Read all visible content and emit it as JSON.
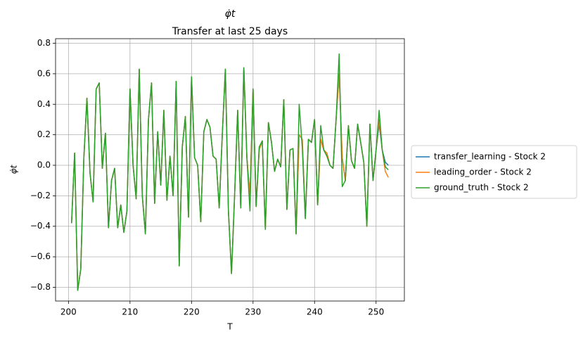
{
  "chart_data": {
    "type": "line",
    "title": "φ̇t",
    "subtitle": "Transfer at last 25 days",
    "xlabel": "T",
    "ylabel": "φ̇t",
    "x": [
      200.5,
      201,
      201.5,
      202,
      202.5,
      203,
      203.5,
      204,
      204.5,
      205,
      205.5,
      206,
      206.5,
      207,
      207.5,
      208,
      208.5,
      209,
      209.5,
      210,
      210.5,
      211,
      211.5,
      212,
      212.5,
      213,
      213.5,
      214,
      214.5,
      215,
      215.5,
      216,
      216.5,
      217,
      217.5,
      218,
      218.5,
      219,
      219.5,
      220,
      220.5,
      221,
      221.5,
      222,
      222.5,
      223,
      223.5,
      224,
      224.5,
      225,
      225.5,
      226,
      226.5,
      227,
      227.5,
      228,
      228.5,
      229,
      229.5,
      230,
      230.5,
      231,
      231.5,
      232,
      232.5,
      233,
      233.5,
      234,
      234.5,
      235,
      235.5,
      236,
      236.5,
      237,
      237.5,
      238,
      238.5,
      239,
      239.5,
      240,
      240.5,
      241,
      241.5,
      242,
      242.5,
      243,
      243.5,
      244,
      244.5,
      245,
      245.5,
      246,
      246.5,
      247,
      247.5,
      248,
      248.5,
      249,
      249.5,
      250,
      250.5,
      251,
      251.5,
      252
    ],
    "series": [
      {
        "name": "transfer_learning - Stock 2",
        "color": "#1f77b4",
        "values": [
          -0.38,
          0.08,
          -0.82,
          -0.68,
          0.05,
          0.44,
          -0.05,
          -0.24,
          0.5,
          0.54,
          -0.02,
          0.21,
          -0.41,
          -0.1,
          -0.02,
          -0.41,
          -0.26,
          -0.44,
          -0.3,
          0.5,
          0.0,
          -0.22,
          0.63,
          -0.2,
          -0.45,
          0.3,
          0.54,
          -0.25,
          0.22,
          -0.13,
          0.36,
          -0.23,
          0.06,
          -0.2,
          0.55,
          -0.66,
          0.12,
          0.32,
          -0.34,
          0.58,
          0.05,
          0.0,
          -0.37,
          0.22,
          0.3,
          0.25,
          0.06,
          0.04,
          -0.28,
          0.2,
          0.63,
          -0.3,
          -0.71,
          -0.2,
          0.36,
          -0.28,
          0.64,
          0.05,
          -0.2,
          0.5,
          -0.27,
          0.1,
          0.16,
          -0.42,
          0.28,
          0.15,
          -0.04,
          0.04,
          -0.01,
          0.43,
          -0.29,
          0.1,
          0.11,
          -0.45,
          0.2,
          0.17,
          -0.35,
          0.17,
          0.15,
          0.3,
          -0.26,
          0.17,
          0.1,
          0.08,
          0.0,
          -0.02,
          0.3,
          0.6,
          0.05,
          -0.1,
          0.26,
          0.03,
          -0.02,
          0.27,
          0.15,
          0.02,
          -0.4,
          0.27,
          -0.1,
          0.1,
          0.27,
          0.1,
          0.02,
          0.0
        ]
      },
      {
        "name": "leading_order - Stock 2",
        "color": "#ff7f0e",
        "values": [
          -0.38,
          0.08,
          -0.82,
          -0.68,
          0.05,
          0.44,
          -0.05,
          -0.24,
          0.5,
          0.54,
          -0.02,
          0.21,
          -0.41,
          -0.1,
          -0.02,
          -0.41,
          -0.26,
          -0.44,
          -0.3,
          0.5,
          0.0,
          -0.22,
          0.63,
          -0.2,
          -0.45,
          0.3,
          0.54,
          -0.25,
          0.22,
          -0.13,
          0.36,
          -0.23,
          0.06,
          -0.2,
          0.55,
          -0.66,
          0.12,
          0.32,
          -0.34,
          0.58,
          0.05,
          0.0,
          -0.37,
          0.22,
          0.3,
          0.25,
          0.06,
          0.04,
          -0.28,
          0.2,
          0.63,
          -0.3,
          -0.71,
          -0.2,
          0.36,
          -0.28,
          0.64,
          0.05,
          -0.2,
          0.5,
          -0.27,
          0.1,
          0.16,
          -0.42,
          0.28,
          0.15,
          -0.04,
          0.04,
          -0.01,
          0.43,
          -0.29,
          0.1,
          0.11,
          -0.45,
          0.2,
          0.17,
          -0.35,
          0.17,
          0.15,
          0.3,
          -0.26,
          0.17,
          0.1,
          0.08,
          0.0,
          -0.02,
          0.3,
          0.6,
          0.05,
          -0.1,
          0.26,
          0.03,
          -0.02,
          0.27,
          0.15,
          0.02,
          -0.4,
          0.27,
          -0.1,
          0.1,
          0.3,
          0.1,
          -0.04,
          -0.08
        ]
      },
      {
        "name": "ground_truth - Stock 2",
        "color": "#2ca02c",
        "values": [
          -0.38,
          0.08,
          -0.82,
          -0.68,
          0.05,
          0.44,
          -0.05,
          -0.24,
          0.5,
          0.54,
          -0.02,
          0.21,
          -0.41,
          -0.1,
          -0.02,
          -0.41,
          -0.26,
          -0.44,
          -0.3,
          0.5,
          0.0,
          -0.22,
          0.63,
          -0.2,
          -0.45,
          0.3,
          0.54,
          -0.25,
          0.22,
          -0.13,
          0.36,
          -0.23,
          0.06,
          -0.2,
          0.55,
          -0.66,
          0.12,
          0.32,
          -0.34,
          0.58,
          0.05,
          0.0,
          -0.37,
          0.22,
          0.3,
          0.25,
          0.06,
          0.04,
          -0.28,
          0.2,
          0.63,
          -0.3,
          -0.71,
          -0.2,
          0.36,
          -0.28,
          0.64,
          0.05,
          -0.3,
          0.5,
          -0.27,
          0.12,
          0.16,
          -0.42,
          0.28,
          0.15,
          -0.04,
          0.04,
          -0.01,
          0.43,
          -0.29,
          0.1,
          0.11,
          -0.45,
          0.4,
          0.12,
          -0.35,
          0.17,
          0.15,
          0.3,
          -0.26,
          0.26,
          0.1,
          0.06,
          0.0,
          -0.02,
          0.3,
          0.73,
          -0.14,
          -0.1,
          0.26,
          0.03,
          -0.02,
          0.27,
          0.15,
          0.02,
          -0.4,
          0.27,
          -0.1,
          0.1,
          0.36,
          0.1,
          -0.01,
          -0.03
        ]
      }
    ],
    "xlim": [
      197.9,
      254.6
    ],
    "ylim": [
      -0.89,
      0.83
    ],
    "xticks": [
      200,
      210,
      220,
      230,
      240,
      250
    ],
    "yticks": [
      {
        "value": -0.8,
        "label": "−0.8"
      },
      {
        "value": -0.6,
        "label": "−0.6"
      },
      {
        "value": -0.4,
        "label": "−0.4"
      },
      {
        "value": -0.2,
        "label": "−0.2"
      },
      {
        "value": 0,
        "label": "0.0"
      },
      0.2,
      0.4,
      0.6,
      0.8
    ],
    "grid": true,
    "legend": "outside right"
  }
}
